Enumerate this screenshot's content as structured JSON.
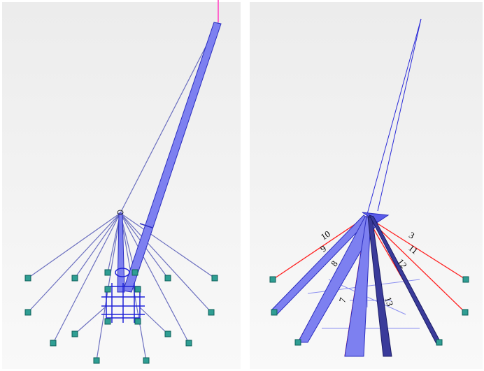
{
  "labels": [
    "10",
    "9",
    "8",
    "7",
    "3",
    "11",
    "12",
    "13"
  ]
}
